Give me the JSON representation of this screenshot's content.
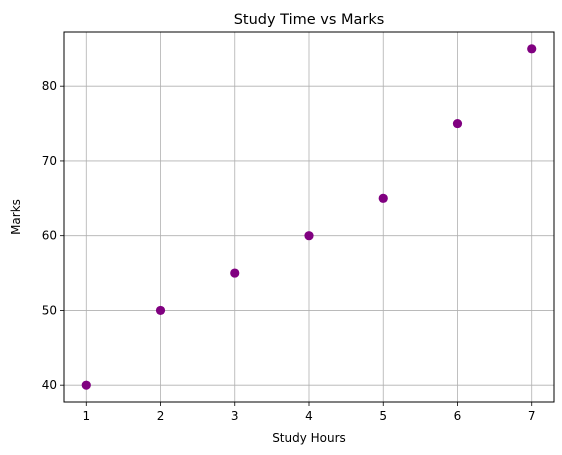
{
  "chart_data": {
    "type": "scatter",
    "title": "Study Time vs Marks",
    "xlabel": "Study Hours",
    "ylabel": "Marks",
    "x": [
      1,
      2,
      3,
      4,
      5,
      6,
      7
    ],
    "y": [
      40,
      50,
      55,
      60,
      65,
      75,
      85
    ],
    "xlim": [
      0.7,
      7.3
    ],
    "ylim": [
      37.75,
      87.25
    ],
    "xticks": [
      1,
      2,
      3,
      4,
      5,
      6,
      7
    ],
    "yticks": [
      40,
      50,
      60,
      70,
      80
    ],
    "grid": true,
    "marker_color": "#800080",
    "grid_color": "#b0b0b0",
    "axis_color": "#000000"
  }
}
